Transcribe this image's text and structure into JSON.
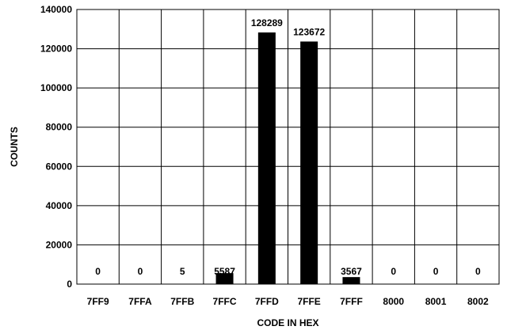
{
  "chart_data": {
    "type": "bar",
    "title": "",
    "xlabel": "CODE IN HEX",
    "ylabel": "COUNTS",
    "categories": [
      "7FF9",
      "7FFA",
      "7FFB",
      "7FFC",
      "7FFD",
      "7FFE",
      "7FFF",
      "8000",
      "8001",
      "8002"
    ],
    "values": [
      0,
      0,
      5,
      5587,
      128289,
      123672,
      3567,
      0,
      0,
      0
    ],
    "data_labels": [
      "0",
      "0",
      "5",
      "5587",
      "128289",
      "123672",
      "3567",
      "0",
      "0",
      "0"
    ],
    "ylim": [
      0,
      140000
    ],
    "yticks": [
      0,
      20000,
      40000,
      60000,
      80000,
      100000,
      120000,
      140000
    ],
    "ytick_labels": [
      "0",
      "20000",
      "40000",
      "60000",
      "80000",
      "100000",
      "120000",
      "140000"
    ],
    "grid": true,
    "legend": "none",
    "bar_color": "#000000"
  }
}
